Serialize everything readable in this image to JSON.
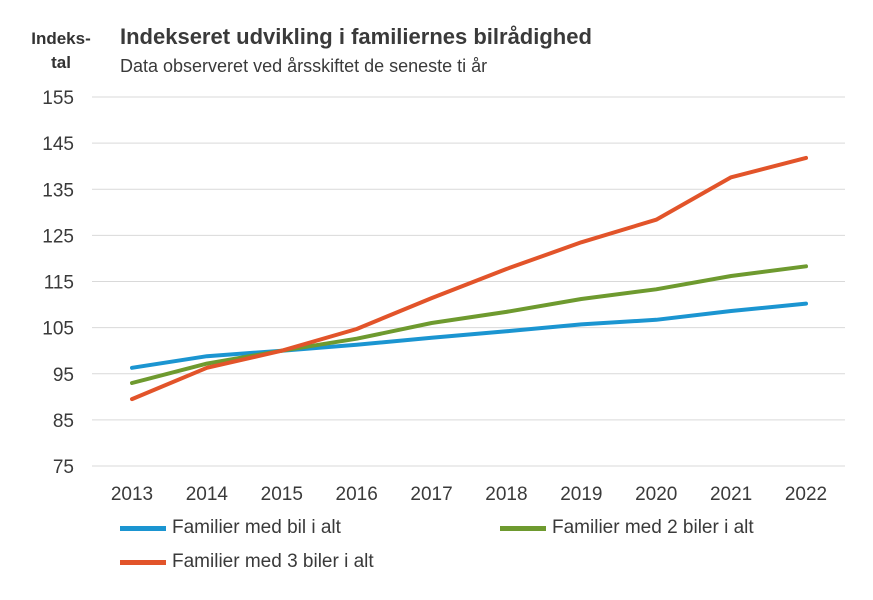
{
  "chart_data": {
    "type": "line",
    "title": "Indekseret udvikling i familiernes bilrådighed",
    "subtitle": "Data observeret ved årsskiftet de seneste ti år",
    "ylabel": "Indeks-\ntal",
    "ylim": [
      75,
      155
    ],
    "yticks": [
      155,
      145,
      135,
      125,
      115,
      105,
      95,
      85,
      75
    ],
    "categories": [
      "2013",
      "2014",
      "2015",
      "2016",
      "2017",
      "2018",
      "2019",
      "2020",
      "2021",
      "2022"
    ],
    "grid": true,
    "legend": "bottom",
    "series": [
      {
        "name": "Familier med bil i alt",
        "color": "#1b95d1",
        "values": [
          96.3,
          98.8,
          100.0,
          101.3,
          102.8,
          104.2,
          105.7,
          106.7,
          108.6,
          110.2
        ]
      },
      {
        "name": "Familier med 2 biler i alt",
        "color": "#6e9a2f",
        "values": [
          93.0,
          97.2,
          100.0,
          102.6,
          106.0,
          108.4,
          111.2,
          113.3,
          116.2,
          118.3
        ]
      },
      {
        "name": "Familier med 3 biler i alt",
        "color": "#e2542a",
        "values": [
          89.5,
          96.3,
          100.0,
          104.7,
          111.4,
          117.7,
          123.5,
          128.4,
          137.6,
          141.8
        ]
      }
    ]
  }
}
